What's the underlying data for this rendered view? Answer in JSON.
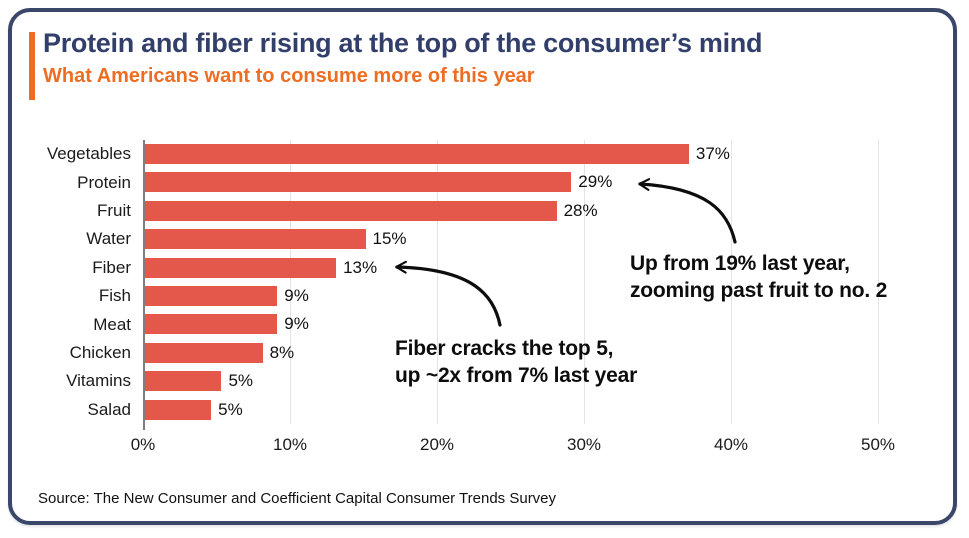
{
  "header": {
    "title": "Protein and fiber rising at the top of the consumer’s mind",
    "subtitle": "What Americans want to consume more of this year"
  },
  "chart_data": {
    "type": "bar",
    "orientation": "horizontal",
    "title": "Protein and fiber rising at the top of the consumer’s mind",
    "subtitle": "What Americans want to consume more of this year",
    "categories": [
      "Vegetables",
      "Protein",
      "Fruit",
      "Water",
      "Fiber",
      "Fish",
      "Meat",
      "Chicken",
      "Vitamins",
      "Salad"
    ],
    "values": [
      37,
      29,
      28,
      15,
      13,
      9,
      9,
      8,
      5,
      5
    ],
    "value_labels": [
      "37%",
      "29%",
      "28%",
      "15%",
      "13%",
      "9%",
      "9%",
      "8%",
      "5%",
      "5%"
    ],
    "bar_visual_pct": [
      37,
      29,
      28,
      15,
      13,
      9,
      9,
      8,
      5.2,
      4.5
    ],
    "xlabel": "",
    "ylabel": "",
    "xlim": [
      0,
      50
    ],
    "x_tick_values": [
      0,
      10,
      20,
      30,
      40,
      50
    ],
    "x_tick_labels": [
      "0%",
      "10%",
      "20%",
      "30%",
      "40%",
      "50%"
    ],
    "grid": "vertical",
    "legend": null,
    "annotations": [
      {
        "line1": "Up from 19% last year,",
        "line2": "zooming past fruit to no. 2",
        "target_category": "Protein",
        "target_value_label": "29%"
      },
      {
        "line1": "Fiber cracks the top 5,",
        "line2": "up ~2x from 7% last year",
        "target_category": "Fiber",
        "target_value_label": "13%"
      }
    ]
  },
  "source": "Source: The New Consumer and Coefficient Capital Consumer Trends Survey",
  "colors": {
    "title_navy": "#333F6B",
    "accent_orange": "#ED6E23",
    "border_navy": "#3A4769",
    "bar_red": "#E4574B",
    "gridline": "#E3E3E3",
    "axis_gray": "#7E7E7E",
    "text_black": "#111111"
  }
}
